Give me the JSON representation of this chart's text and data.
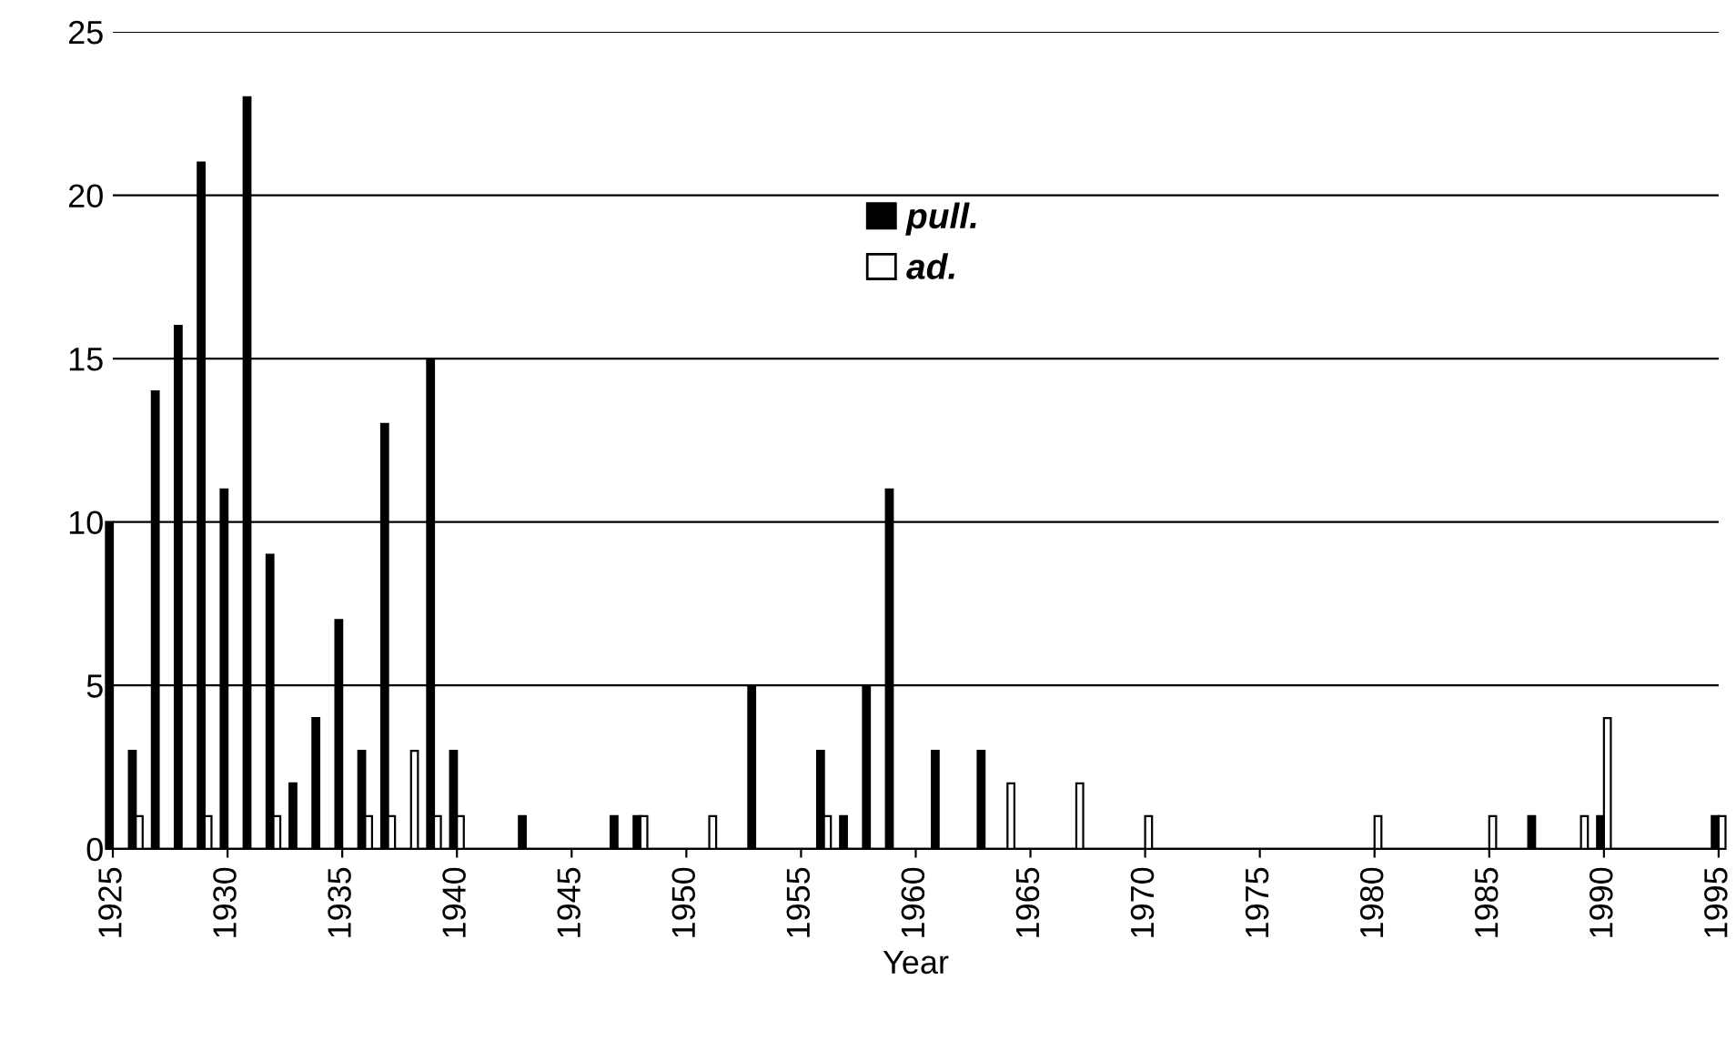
{
  "chart_data": {
    "type": "bar",
    "xlabel": "Year",
    "series": [
      {
        "name": "pull.",
        "color": "#000000",
        "x": [
          1925,
          1926,
          1927,
          1928,
          1929,
          1930,
          1931,
          1932,
          1933,
          1934,
          1935,
          1936,
          1937,
          1939,
          1940,
          1943,
          1947,
          1948,
          1953,
          1956,
          1957,
          1958,
          1959,
          1961,
          1963,
          1987,
          1990,
          1995
        ],
        "values": [
          10,
          3,
          14,
          16,
          21,
          11,
          23,
          9,
          2,
          4,
          7,
          3,
          13,
          15,
          3,
          1,
          1,
          1,
          5,
          3,
          1,
          5,
          11,
          3,
          3,
          1,
          1,
          1
        ]
      },
      {
        "name": "ad.",
        "color": "#ffffff",
        "x": [
          1926,
          1929,
          1932,
          1936,
          1937,
          1938,
          1939,
          1940,
          1948,
          1951,
          1956,
          1964,
          1967,
          1970,
          1980,
          1985,
          1989,
          1990,
          1995
        ],
        "values": [
          1,
          1,
          1,
          1,
          1,
          3,
          1,
          1,
          1,
          1,
          1,
          2,
          2,
          1,
          1,
          1,
          1,
          4,
          1
        ]
      }
    ],
    "xlim": [
      1925,
      1995
    ],
    "xticks": [
      1925,
      1930,
      1935,
      1940,
      1945,
      1950,
      1955,
      1960,
      1965,
      1970,
      1975,
      1980,
      1985,
      1990,
      1995
    ],
    "ylim": [
      0,
      25
    ],
    "yticks": [
      0,
      5,
      10,
      15,
      20,
      25
    ],
    "grid": "y",
    "legend": "top"
  }
}
